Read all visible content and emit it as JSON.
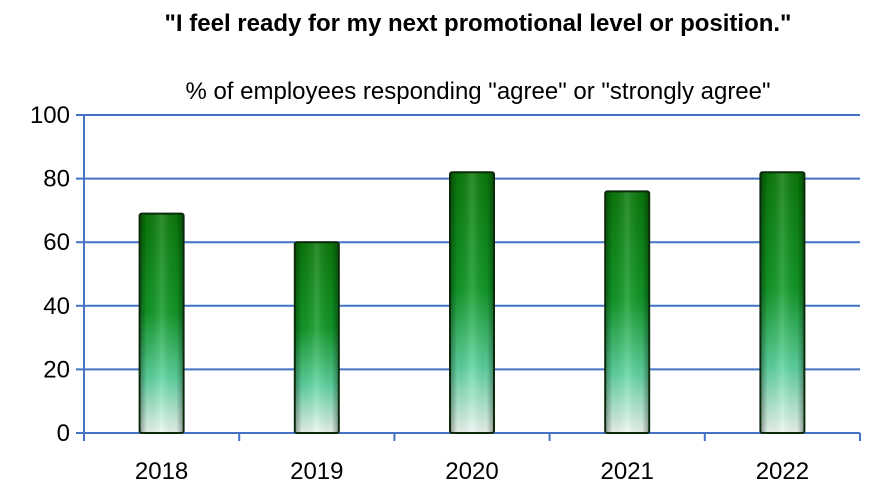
{
  "chart_data": {
    "type": "bar",
    "title": "\"I feel ready for my next promotional level or position.\"",
    "subtitle": "% of employees responding \"agree\" or \"strongly agree\"",
    "categories": [
      "2018",
      "2019",
      "2020",
      "2021",
      "2022"
    ],
    "values": [
      69,
      60,
      82,
      76,
      82
    ],
    "ylim": [
      0,
      100
    ],
    "yticks": [
      "0",
      "20",
      "40",
      "60",
      "80",
      "100"
    ],
    "grid": true,
    "legend": "none",
    "colors": {
      "bar_top": "#0b7a0b",
      "bar_bottom": "#e8f5ef",
      "bar_edge": "#0a2a0a",
      "gridline": "#4472c4",
      "axis": "#4472c4"
    }
  }
}
